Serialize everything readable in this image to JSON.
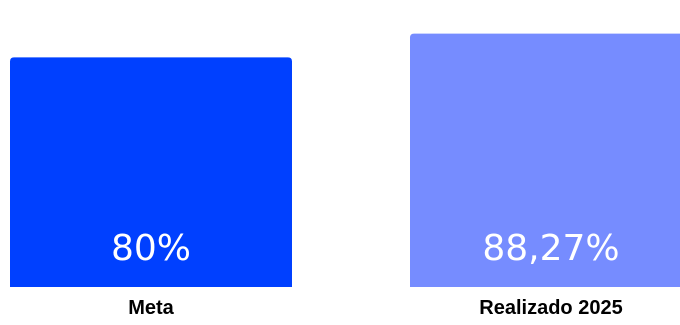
{
  "chart_data": {
    "type": "bar",
    "categories": [
      "Meta",
      "Realizado 2025"
    ],
    "values": [
      80,
      88.27
    ],
    "value_labels": [
      "80%",
      "88,27%"
    ],
    "ylim": [
      0,
      100
    ],
    "colors": [
      "#0040ff",
      "#768cff"
    ],
    "title": "",
    "xlabel": "",
    "ylabel": "",
    "grid": false
  }
}
